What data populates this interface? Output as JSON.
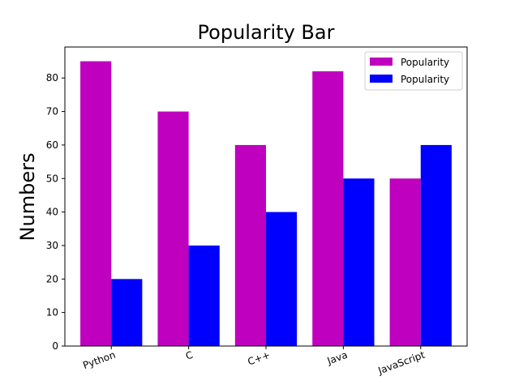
{
  "chart_data": {
    "type": "bar",
    "title": "Popularity Bar",
    "xlabel": "",
    "ylabel": "Numbers",
    "categories": [
      "Python",
      "C",
      "C++",
      "Java",
      "JavaScript"
    ],
    "series": [
      {
        "name": "Popularity",
        "color": "#bf00bf",
        "values": [
          85,
          70,
          60,
          82,
          50
        ]
      },
      {
        "name": "Popularity",
        "color": "#0000ff",
        "values": [
          20,
          30,
          40,
          50,
          60
        ]
      }
    ],
    "ylim": [
      0,
      89.25
    ],
    "yticks": [
      0,
      10,
      20,
      30,
      40,
      50,
      60,
      70,
      80
    ],
    "legend": "top-right",
    "grid": false
  }
}
